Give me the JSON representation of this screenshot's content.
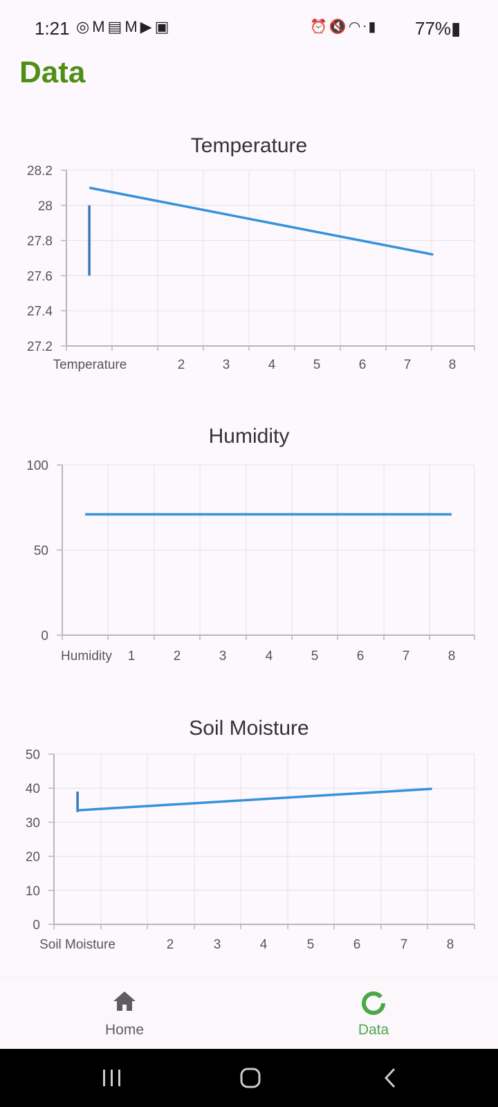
{
  "status_bar": {
    "time": "1:21",
    "battery": "77%",
    "left_icons": [
      "whatsapp-icon",
      "gmail-icon",
      "news-icon",
      "gmail-icon",
      "youtube-icon",
      "gallery-icon"
    ],
    "right_icons": [
      "alarm-icon",
      "mute-icon",
      "wifi-icon",
      "volte-icon",
      "signal-icon",
      "battery-icon"
    ]
  },
  "page": {
    "title": "Data"
  },
  "colors": {
    "title_green": "#4f8f16",
    "line_blue": "#3592db",
    "axis_gray": "#b9b5bb",
    "grid_gray": "#e2dfe4",
    "nav_active": "#4aa84a"
  },
  "chart_data": [
    {
      "type": "line",
      "title": "Temperature",
      "xlabel": "",
      "ylabel": "",
      "x_tick_labels": [
        "Temperature",
        "2",
        "3",
        "4",
        "5",
        "6",
        "7",
        "8"
      ],
      "y_tick_labels": [
        "28.2",
        "28",
        "27.8",
        "27.6",
        "27.4",
        "27.2"
      ],
      "ylim": [
        27.2,
        28.2
      ],
      "xlim": [
        0.5,
        9.4
      ],
      "grid": true,
      "series": [
        {
          "x": [
            1,
            1
          ],
          "y": [
            27.6,
            28.0
          ]
        },
        {
          "x": [
            1,
            8.5
          ],
          "y": [
            28.1,
            27.72
          ]
        }
      ]
    },
    {
      "type": "line",
      "title": "Humidity",
      "xlabel": "",
      "ylabel": "",
      "x_tick_labels": [
        "Humidity",
        "1",
        "2",
        "3",
        "4",
        "5",
        "6",
        "7",
        "8"
      ],
      "y_tick_labels": [
        "100",
        "50",
        "0"
      ],
      "ylim": [
        0,
        100
      ],
      "xlim": [
        0,
        9
      ],
      "grid": true,
      "series": [
        {
          "x": [
            0.5,
            8.5
          ],
          "y": [
            71,
            71
          ]
        }
      ]
    },
    {
      "type": "line",
      "title": "Soil Moisture",
      "xlabel": "",
      "ylabel": "",
      "x_tick_labels": [
        "Soil Moisture",
        "2",
        "3",
        "4",
        "5",
        "6",
        "7",
        "8"
      ],
      "y_tick_labels": [
        "50",
        "40",
        "30",
        "20",
        "10",
        "0"
      ],
      "ylim": [
        0,
        50
      ],
      "xlim": [
        0.5,
        9.4
      ],
      "grid": true,
      "series": [
        {
          "x": [
            1,
            1
          ],
          "y": [
            33,
            39
          ]
        },
        {
          "x": [
            1,
            8.5
          ],
          "y": [
            33.5,
            39.8
          ]
        }
      ]
    }
  ],
  "bottom_nav": {
    "items": [
      {
        "label": "Home",
        "icon": "home-icon",
        "active": false
      },
      {
        "label": "Data",
        "icon": "donut-chart-icon",
        "active": true
      }
    ]
  },
  "system_nav": {
    "buttons": [
      "recents-icon",
      "home-circle-icon",
      "back-icon"
    ]
  }
}
